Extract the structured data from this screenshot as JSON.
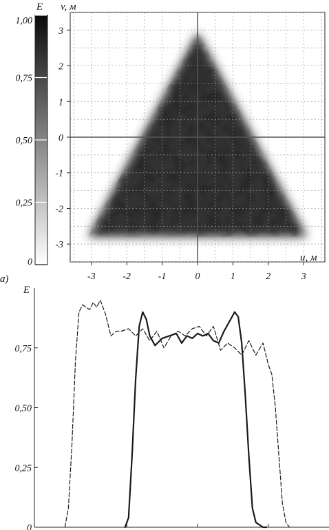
{
  "figure": {
    "panel_a_label": "a)"
  },
  "chart_data": [
    {
      "type": "heatmap",
      "xlabel": "u, м",
      "ylabel": "v, м",
      "xlim": [
        -3.6,
        3.6
      ],
      "ylim": [
        -3.5,
        3.5
      ],
      "xticks": [
        "-3",
        "-2",
        "-1",
        "0",
        "1",
        "2",
        "3"
      ],
      "yticks": [
        "-3",
        "-2",
        "-1",
        "0",
        "1",
        "2",
        "3"
      ],
      "grid": true,
      "description_shape": "triangle",
      "shape_vertices": [
        [
          0,
          2.95
        ],
        [
          -3.1,
          -2.8
        ],
        [
          3.1,
          -2.8
        ]
      ],
      "interior_level": 0.8,
      "colorbar": {
        "title": "E",
        "range": [
          0,
          1
        ],
        "ticks": [
          "0",
          "0,25",
          "0,50",
          "0,75",
          "1,00"
        ],
        "colors": [
          "#ffffff",
          "#0a0a0a"
        ]
      }
    },
    {
      "type": "line",
      "ylabel": "E",
      "ylim": [
        0,
        1
      ],
      "yticks": [
        "0",
        "0,25",
        "0,50",
        "0,75"
      ],
      "xlim": [
        -3.6,
        3.6
      ],
      "series": [
        {
          "style": "solid",
          "x": [
            -2.05,
            -1.95,
            -1.85,
            -1.75,
            -1.65,
            -1.55,
            -1.45,
            -1.35,
            -1.2,
            -1.0,
            -0.8,
            -0.6,
            -0.45,
            -0.3,
            -0.15,
            0.0,
            0.15,
            0.3,
            0.45,
            0.6,
            0.75,
            0.9,
            1.05,
            1.15,
            1.25,
            1.35,
            1.45,
            1.55,
            1.65,
            1.75,
            1.85,
            1.95
          ],
          "y": [
            0,
            0.04,
            0.3,
            0.62,
            0.84,
            0.9,
            0.87,
            0.8,
            0.76,
            0.79,
            0.8,
            0.81,
            0.77,
            0.8,
            0.79,
            0.81,
            0.8,
            0.81,
            0.78,
            0.77,
            0.82,
            0.86,
            0.9,
            0.88,
            0.77,
            0.55,
            0.3,
            0.08,
            0.02,
            0.01,
            0.0,
            0.0
          ]
        },
        {
          "style": "dashed",
          "x": [
            -3.75,
            -3.65,
            -3.55,
            -3.45,
            -3.35,
            -3.25,
            -3.15,
            -3.05,
            -2.95,
            -2.85,
            -2.75,
            -2.6,
            -2.45,
            -2.3,
            -2.15,
            -1.95,
            -1.75,
            -1.55,
            -1.35,
            -1.15,
            -0.95,
            -0.75,
            -0.55,
            -0.35,
            -0.15,
            0.05,
            0.25,
            0.45,
            0.65,
            0.85,
            1.05,
            1.25,
            1.45,
            1.65,
            1.85,
            2.0,
            2.1,
            2.2,
            2.3,
            2.4,
            2.5,
            2.6
          ],
          "y": [
            0,
            0.08,
            0.35,
            0.7,
            0.9,
            0.93,
            0.92,
            0.91,
            0.94,
            0.92,
            0.95,
            0.89,
            0.8,
            0.82,
            0.82,
            0.83,
            0.8,
            0.83,
            0.78,
            0.82,
            0.75,
            0.8,
            0.82,
            0.8,
            0.83,
            0.84,
            0.8,
            0.84,
            0.74,
            0.77,
            0.75,
            0.72,
            0.78,
            0.72,
            0.77,
            0.68,
            0.64,
            0.5,
            0.3,
            0.1,
            0.02,
            0.0
          ]
        }
      ]
    }
  ]
}
